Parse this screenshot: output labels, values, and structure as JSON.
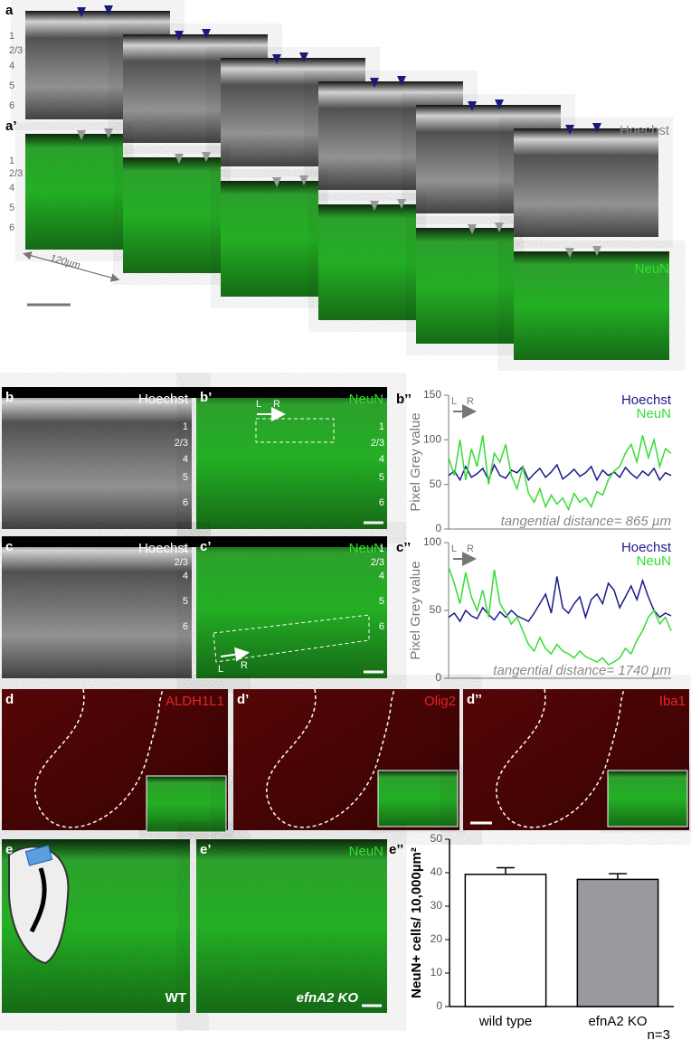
{
  "figure": {
    "a": {
      "label": "a",
      "stain": "Hoechst"
    },
    "a_prime": {
      "label": "a’",
      "stain": "NeuN",
      "scale": "120µm"
    },
    "layers": [
      "1",
      "2/3",
      "4",
      "5",
      "6"
    ],
    "direction": [
      "L",
      "R"
    ],
    "b": {
      "label": "b",
      "stain": "Hoechst"
    },
    "b_prime": {
      "label": "b’",
      "stain": "NeuN"
    },
    "b_dprime": {
      "label": "b’’"
    },
    "c": {
      "label": "c",
      "stain": "Hoechst"
    },
    "c_prime": {
      "label": "c’",
      "stain": "NeuN"
    },
    "c_dprime": {
      "label": "c’’"
    },
    "d": {
      "label": "d",
      "stain": "ALDH1L1"
    },
    "d_prime": {
      "label": "d’",
      "stain": "Olig2"
    },
    "d_dprime": {
      "label": "d’’",
      "stain": "Iba1"
    },
    "e": {
      "label": "e",
      "genotype": "WT"
    },
    "e_prime": {
      "label": "e’",
      "stain": "NeuN",
      "genotype": "efnA2 KO"
    },
    "e_dprime": {
      "label": "e’’"
    }
  },
  "chart_data": [
    {
      "type": "line",
      "y_label": "Pixel Grey value",
      "annotation": "tangential distance= 865 µm",
      "ylim": [
        0,
        150
      ],
      "yticks": [
        0,
        50,
        100,
        150
      ],
      "series": [
        {
          "name": "Hoechst",
          "color": "#1a1a8c",
          "values": [
            60,
            65,
            55,
            70,
            58,
            62,
            68,
            55,
            72,
            60,
            57,
            66,
            63,
            70,
            55,
            62,
            68,
            58,
            64,
            72,
            56,
            61,
            67,
            59,
            63,
            70,
            55,
            66,
            60,
            64,
            58,
            69,
            62,
            57,
            65,
            60,
            68,
            55,
            63,
            60
          ]
        },
        {
          "name": "NeuN",
          "color": "#33dd33",
          "values": [
            80,
            60,
            100,
            55,
            90,
            70,
            105,
            50,
            85,
            75,
            95,
            60,
            45,
            70,
            40,
            30,
            45,
            25,
            38,
            28,
            35,
            22,
            40,
            30,
            35,
            25,
            42,
            38,
            55,
            65,
            70,
            85,
            95,
            75,
            105,
            80,
            100,
            70,
            90,
            85
          ]
        }
      ]
    },
    {
      "type": "line",
      "y_label": "Pixel Grey value",
      "annotation": "tangential distance= 1740 µm",
      "ylim": [
        0,
        100
      ],
      "yticks": [
        0,
        50,
        100
      ],
      "series": [
        {
          "name": "Hoechst",
          "color": "#1a1a8c",
          "values": [
            45,
            48,
            42,
            50,
            46,
            44,
            52,
            47,
            43,
            49,
            45,
            50,
            46,
            44,
            42,
            48,
            55,
            62,
            48,
            75,
            52,
            48,
            55,
            60,
            45,
            58,
            62,
            55,
            70,
            65,
            52,
            60,
            68,
            58,
            72,
            60,
            50,
            45,
            48,
            46
          ]
        },
        {
          "name": "NeuN",
          "color": "#33dd33",
          "values": [
            82,
            70,
            55,
            78,
            60,
            50,
            65,
            45,
            80,
            55,
            48,
            40,
            45,
            35,
            25,
            20,
            30,
            22,
            18,
            25,
            20,
            18,
            15,
            20,
            16,
            14,
            12,
            15,
            10,
            12,
            15,
            22,
            18,
            28,
            35,
            45,
            50,
            40,
            45,
            35
          ]
        }
      ]
    },
    {
      "type": "bar",
      "y_label": "NeuN+ cells/ 10,000µm²",
      "annotation": "n=3",
      "categories": [
        "wild type",
        "efnA2 KO"
      ],
      "values": [
        39.5,
        38
      ],
      "errors": [
        2,
        1.7
      ],
      "colors": [
        "#ffffff",
        "#9a9a9e"
      ],
      "ylim": [
        0,
        50
      ],
      "yticks": [
        0,
        10,
        20,
        30,
        40,
        50
      ]
    }
  ]
}
